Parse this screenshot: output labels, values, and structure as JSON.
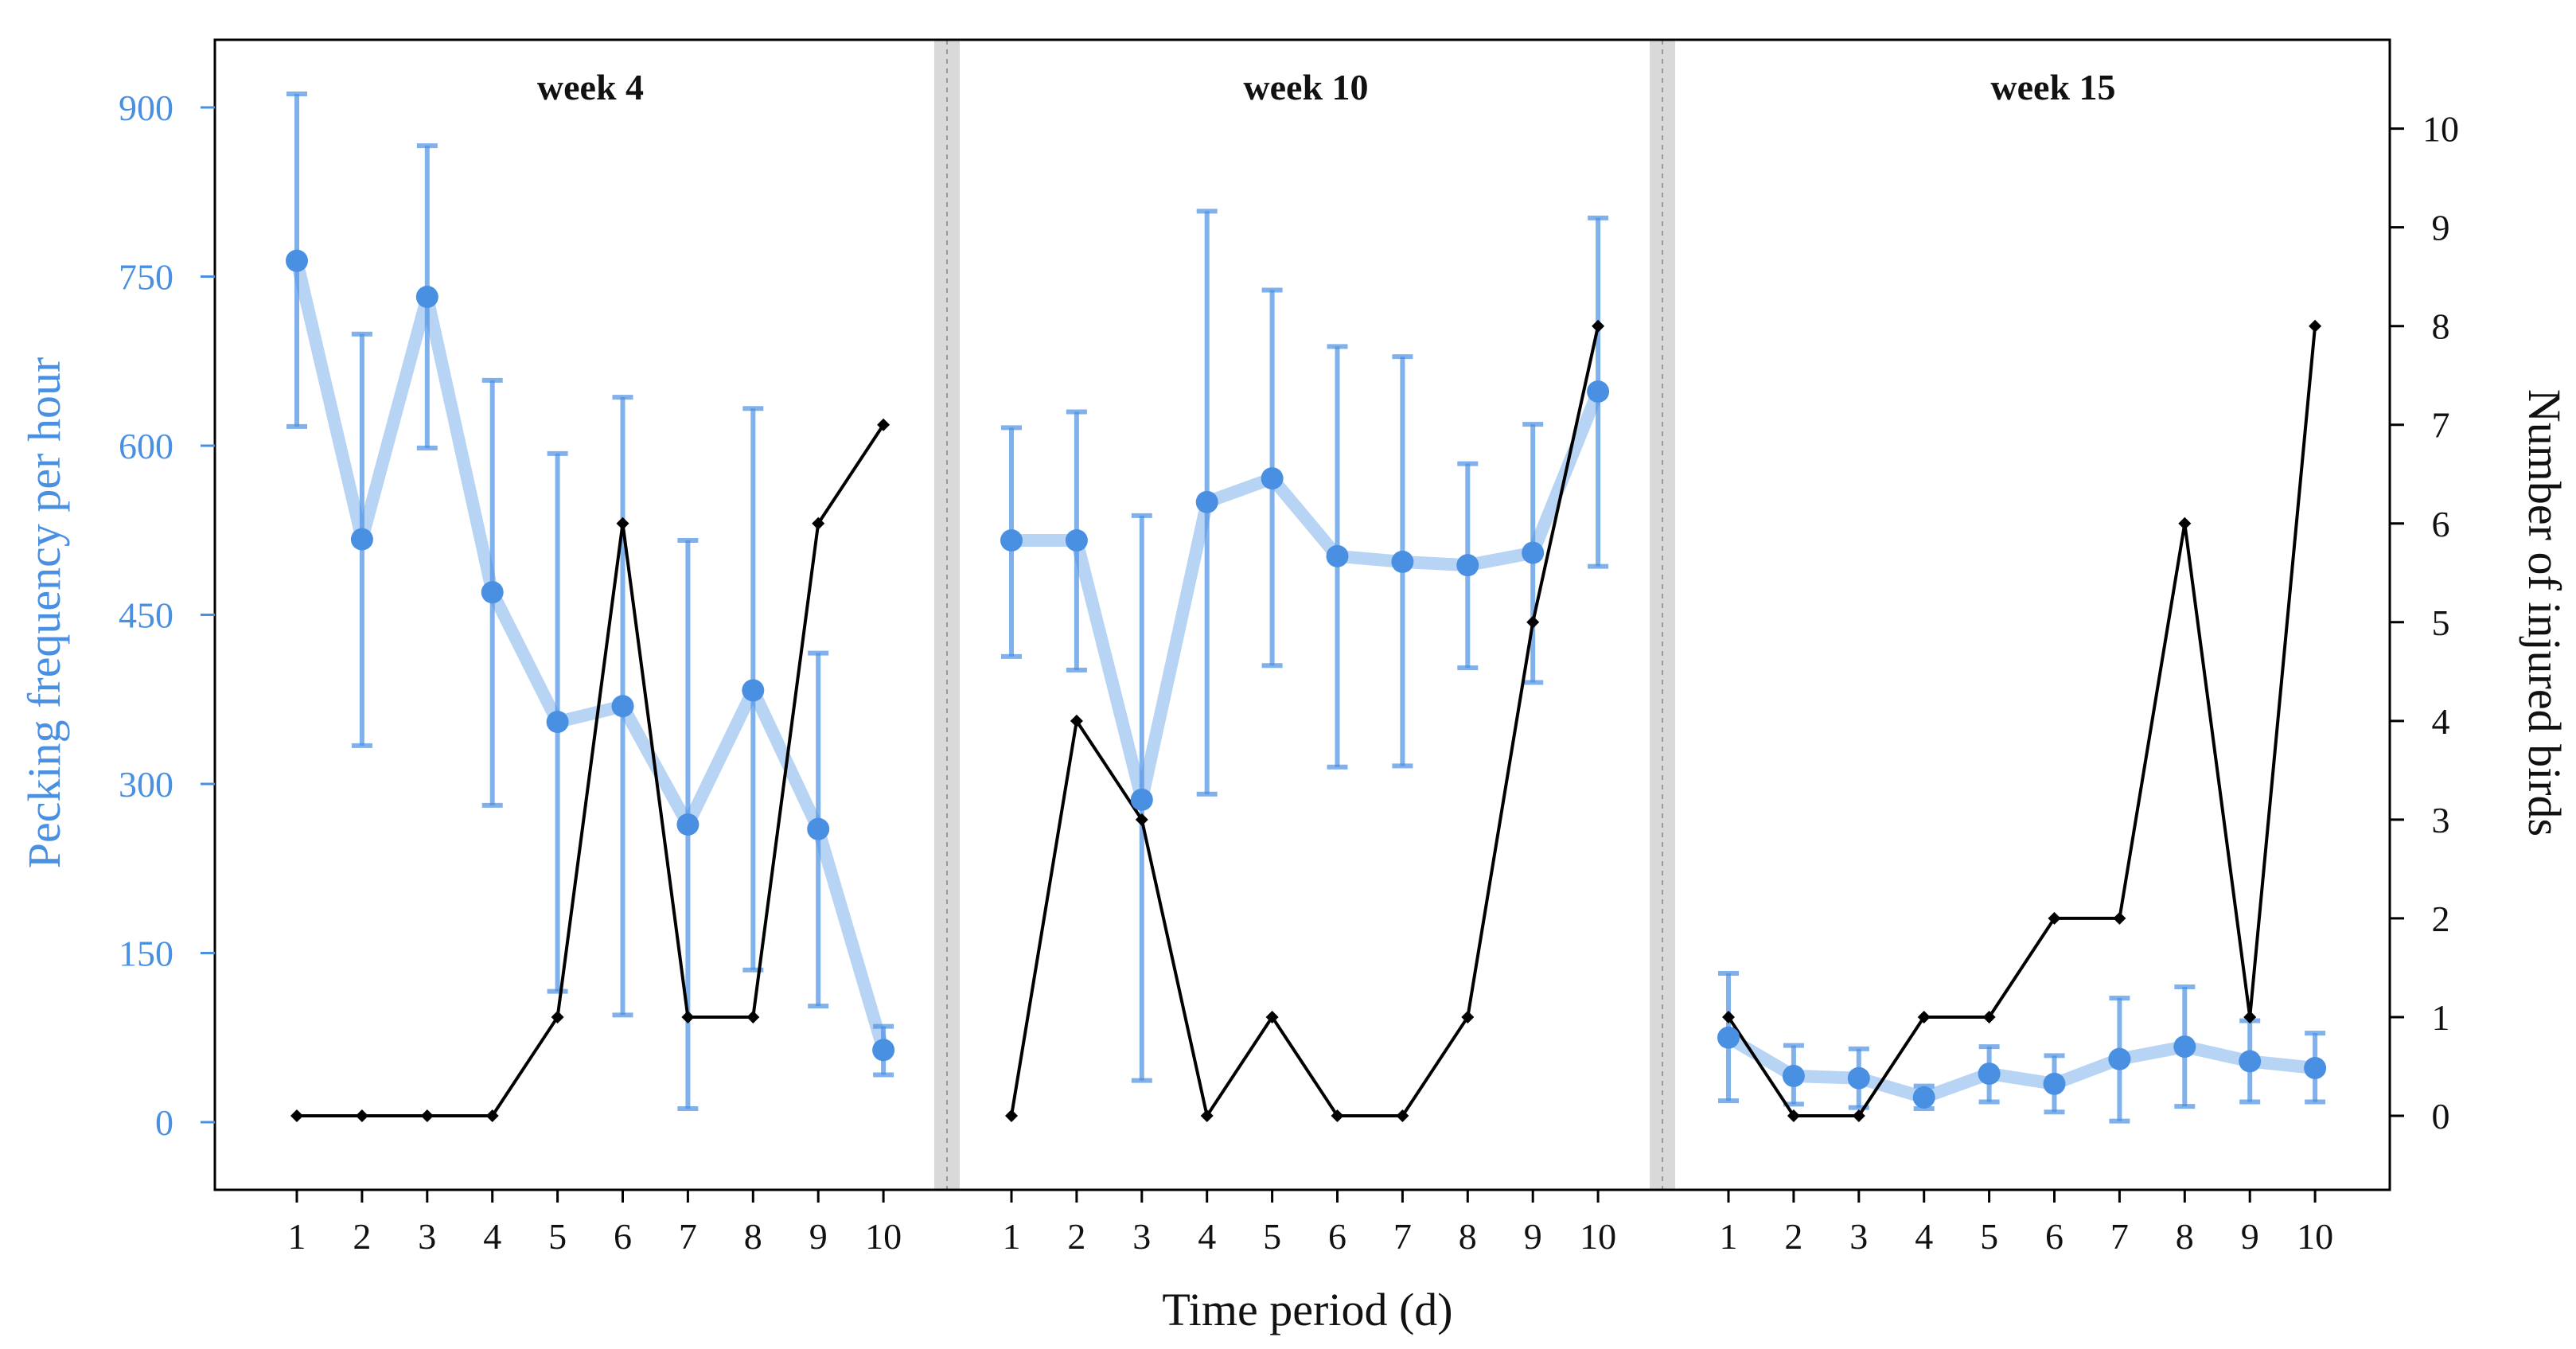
{
  "colors": {
    "pecking": "#4a90e2",
    "pecking_line": "#b8d4f4",
    "injured": "#000000",
    "separator": "#d9d9d9"
  },
  "chart_data": {
    "type": "line",
    "xlabel": "Time period (d)",
    "ylabel_left": "Pecking frequency per hour",
    "ylabel_right": "Number of injured birds",
    "ylim_left": [
      -60,
      960
    ],
    "ylim_right": [
      -0.75,
      10.9
    ],
    "yticks_left": [
      0,
      150,
      300,
      450,
      600,
      750,
      900
    ],
    "yticks_right": [
      0,
      1,
      2,
      3,
      4,
      5,
      6,
      7,
      8,
      9,
      10
    ],
    "x": [
      "1",
      "2",
      "3",
      "4",
      "5",
      "6",
      "7",
      "8",
      "9",
      "10"
    ],
    "panels": [
      {
        "title": "week 4",
        "pecking": {
          "mean": [
            764,
            517,
            732,
            470,
            355,
            369,
            264,
            383,
            260,
            64
          ],
          "lower": [
            617,
            334,
            598,
            281,
            116,
            95,
            12,
            135,
            103,
            42
          ],
          "upper": [
            912,
            699,
            866,
            658,
            593,
            643,
            516,
            633,
            416,
            85
          ]
        },
        "injured": [
          0,
          0,
          0,
          0,
          1,
          6,
          1,
          1,
          6,
          7
        ]
      },
      {
        "title": "week 10",
        "pecking": {
          "mean": [
            516,
            516,
            286,
            550,
            571,
            502,
            497,
            494,
            505,
            648
          ],
          "lower": [
            413,
            401,
            37,
            291,
            405,
            315,
            316,
            403,
            390,
            493
          ],
          "upper": [
            616,
            630,
            538,
            808,
            738,
            688,
            679,
            584,
            619,
            802
          ]
        },
        "injured": [
          0,
          4,
          3,
          0,
          1,
          0,
          0,
          1,
          5,
          8
        ]
      },
      {
        "title": "week 15",
        "pecking": {
          "mean": [
            75,
            41,
            39,
            22,
            43,
            34,
            56,
            67,
            54,
            48
          ],
          "lower": [
            19,
            16,
            13,
            12,
            18,
            9,
            1,
            14,
            18,
            18
          ],
          "upper": [
            132,
            68,
            65,
            32,
            67,
            59,
            110,
            120,
            90,
            79
          ]
        },
        "injured": [
          1,
          0,
          0,
          1,
          1,
          2,
          2,
          6,
          1,
          8
        ]
      }
    ]
  }
}
